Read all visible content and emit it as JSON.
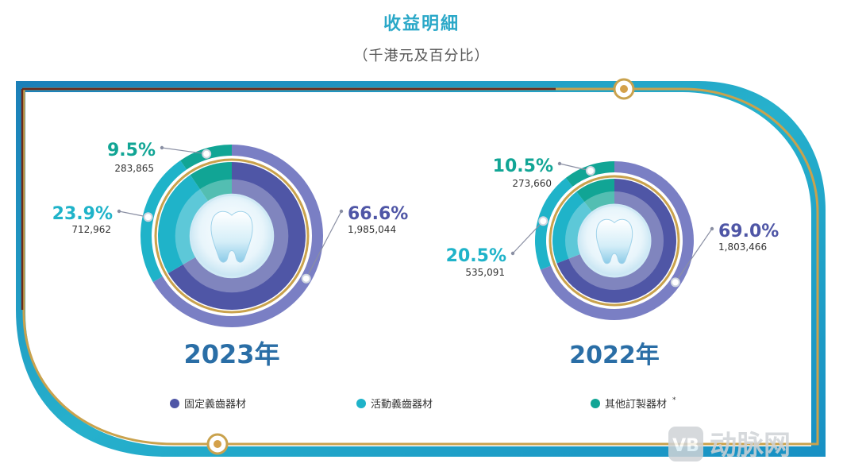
{
  "header": {
    "title": "收益明細",
    "subtitle": "（千港元及百分比）"
  },
  "colors": {
    "fixed": "#4f56a6",
    "removable": "#1fb3c9",
    "other": "#11a595",
    "outer_ring": "#7a7fc4",
    "gold": "#c9a24d",
    "frame_teal": "#1fa2c8",
    "frame_brown": "#6b2a1a"
  },
  "chart_data": [
    {
      "type": "pie",
      "year_label": "2023年",
      "series": [
        {
          "name": "固定義齒器材",
          "percent_label": "66.6%",
          "value_label": "1,985,044",
          "value": 1985044,
          "percent": 66.6
        },
        {
          "name": "活動義齒器材",
          "percent_label": "23.9%",
          "value_label": "712,962",
          "value": 712962,
          "percent": 23.9
        },
        {
          "name": "其他訂製器材",
          "percent_label": "9.5%",
          "value_label": "283,865",
          "value": 283865,
          "percent": 9.5
        }
      ]
    },
    {
      "type": "pie",
      "year_label": "2022年",
      "series": [
        {
          "name": "固定義齒器材",
          "percent_label": "69.0%",
          "value_label": "1,803,466",
          "value": 1803466,
          "percent": 69.0
        },
        {
          "name": "活動義齒器材",
          "percent_label": "20.5%",
          "value_label": "535,091",
          "value": 535091,
          "percent": 20.5
        },
        {
          "name": "其他訂製器材",
          "percent_label": "10.5%",
          "value_label": "273,660",
          "value": 273660,
          "percent": 10.5
        }
      ]
    }
  ],
  "legend": [
    {
      "label": "固定義齒器材",
      "color": "#4f56a6"
    },
    {
      "label": "活動義齒器材",
      "color": "#1fb3c9"
    },
    {
      "label": "其他訂製器材",
      "color": "#11a595",
      "note": "*"
    }
  ],
  "watermark": {
    "text": "动脉网"
  }
}
